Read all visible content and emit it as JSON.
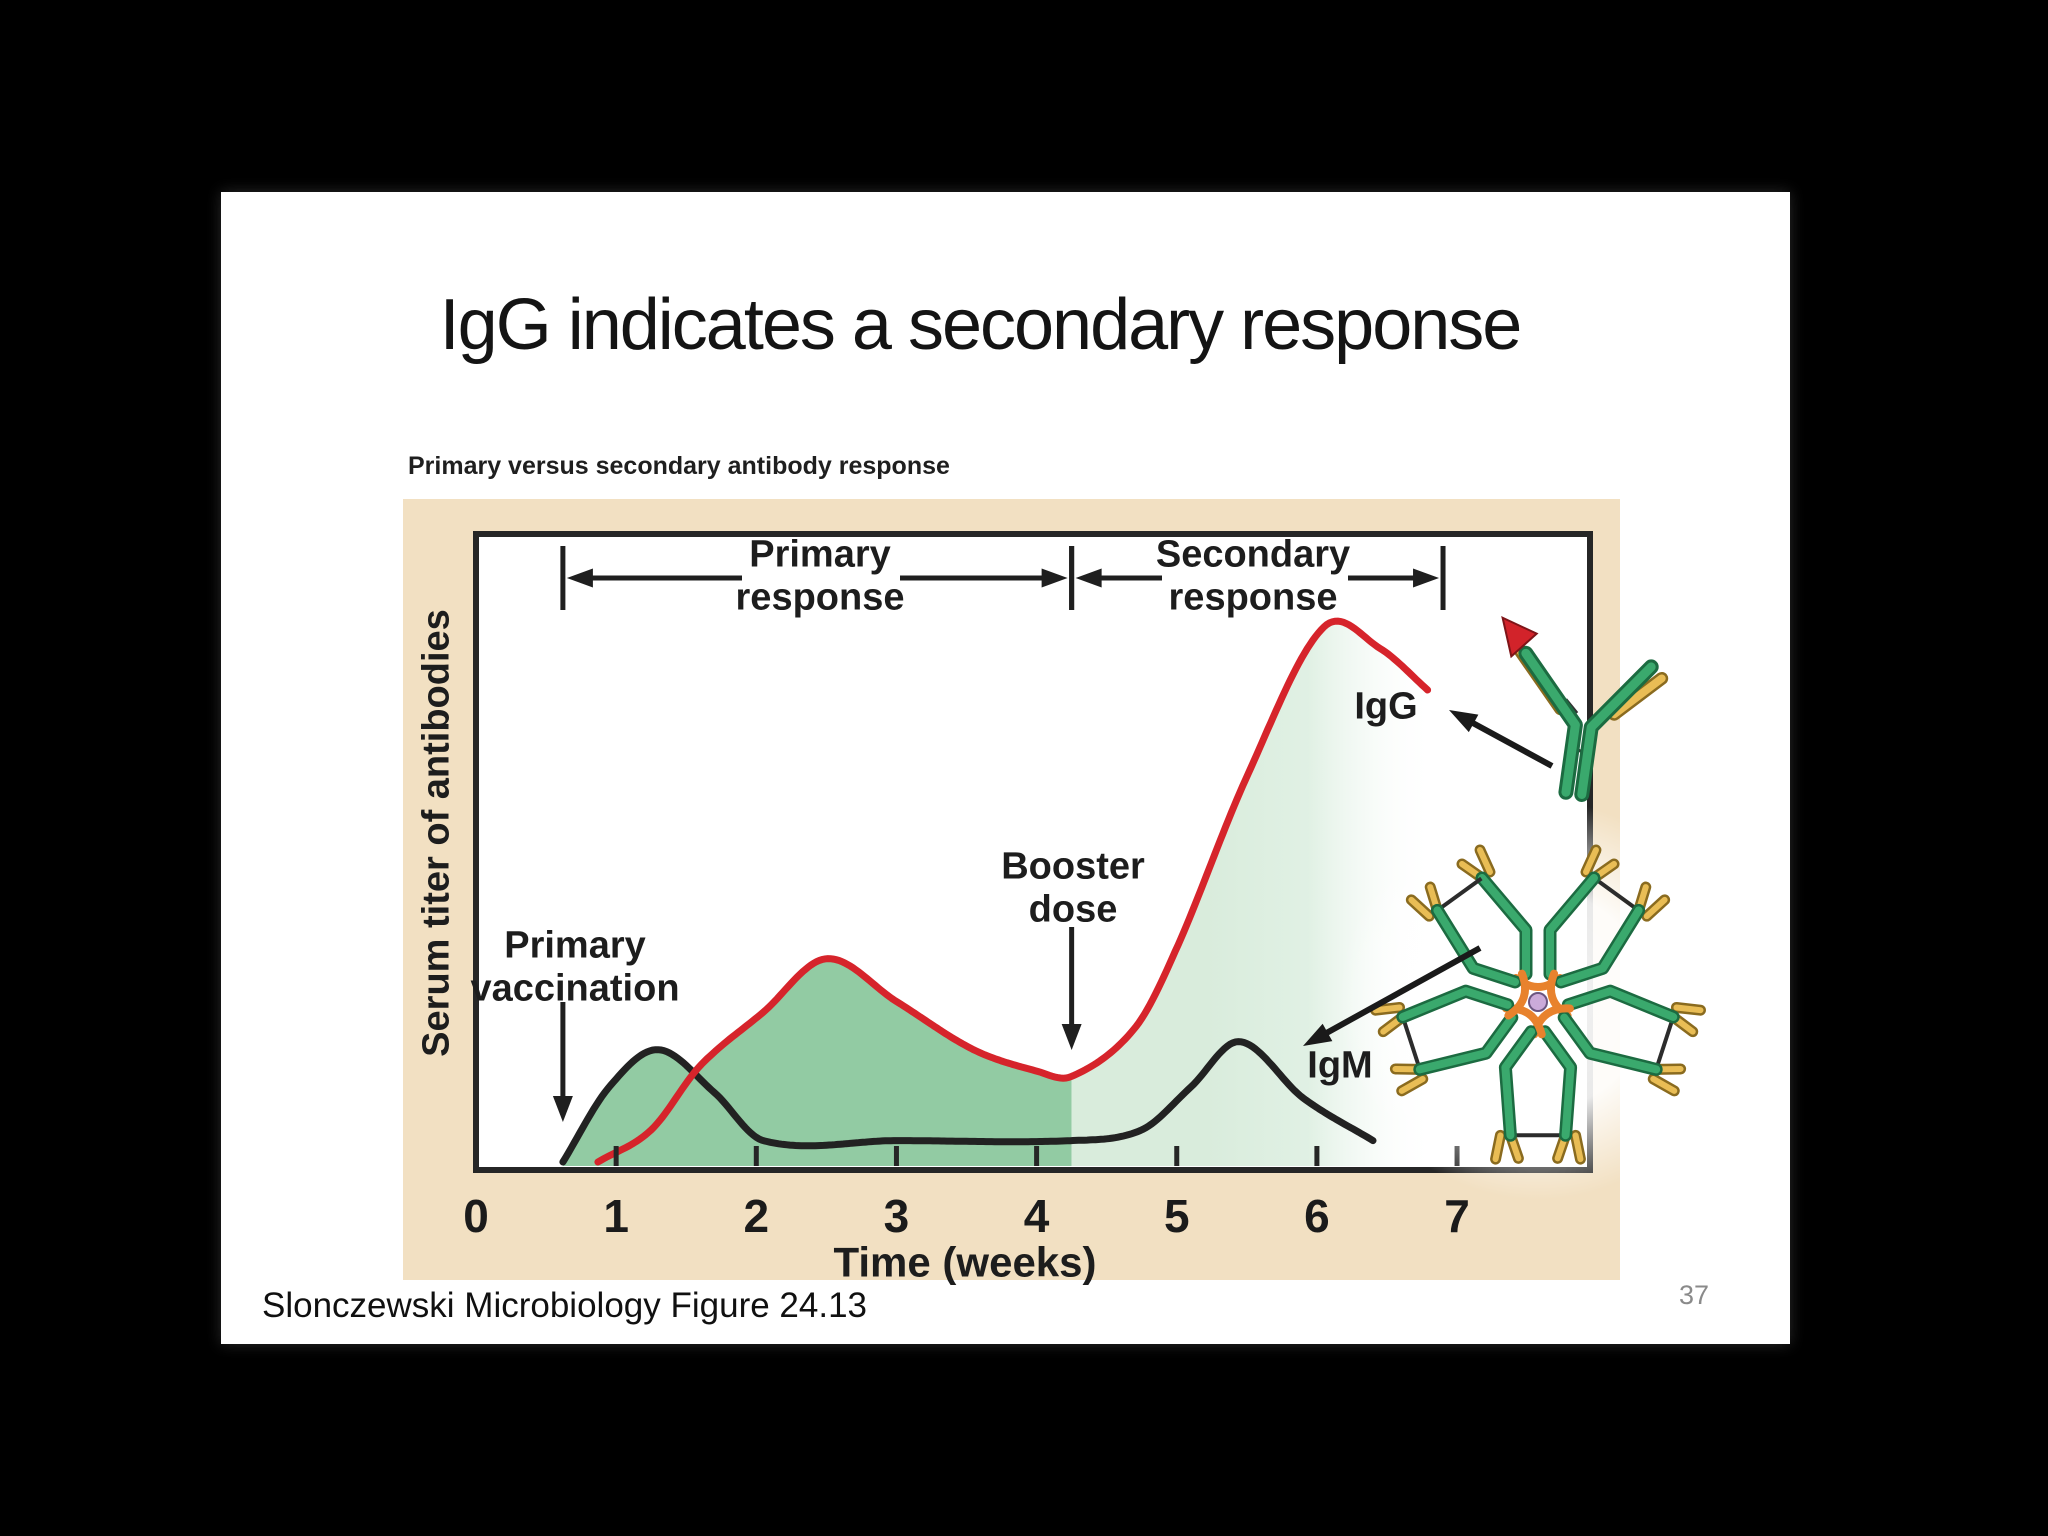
{
  "page": {
    "background": "#000000",
    "page_number": "37"
  },
  "slide": {
    "title": "IgG indicates a secondary response",
    "caption": "Slonczewski Microbiology Figure 24.13"
  },
  "figure": {
    "heading": "Primary versus secondary antibody response",
    "labels": {
      "primary_response": "Primary response",
      "secondary_response": "Secondary response",
      "primary_vaccination": "Primary vaccination",
      "booster_dose": "Booster dose",
      "igg": "IgG",
      "igm": "IgM"
    },
    "colors": {
      "tan_panel": "#f2e0c2",
      "frame_border": "#262626",
      "annotation_ink": "#1f1f1f",
      "antibody_green": "#3aa96d",
      "antibody_green_dark": "#1c6b41",
      "light_chain_yellow": "#e9bd55",
      "light_chain_yellow_dark": "#8a6b1f",
      "joint_orange": "#e8822d",
      "antigen_red": "#d2232a",
      "jchain_black": "#2c2c2c",
      "center_lavender": "#cbaad9",
      "page_number_gray": "#8a8a8a"
    }
  },
  "chart_data": {
    "type": "line",
    "title": "Primary versus secondary antibody response",
    "xlabel": "Time (weeks)",
    "ylabel": "Serum titer of antibodies",
    "x_ticks": [
      0,
      1,
      2,
      3,
      4,
      5,
      6,
      7
    ],
    "xlim": [
      0,
      7.95
    ],
    "ylim": [
      0,
      110
    ],
    "grid": false,
    "legend_position": "none",
    "y_axis_numeric_labels": false,
    "series": [
      {
        "name": "IgG",
        "color": "#d6242b",
        "points": [
          [
            0.87,
            0
          ],
          [
            1.25,
            6
          ],
          [
            1.6,
            18
          ],
          [
            2.05,
            28
          ],
          [
            2.5,
            38
          ],
          [
            3.0,
            30
          ],
          [
            3.55,
            21
          ],
          [
            4.0,
            17
          ],
          [
            4.25,
            16
          ],
          [
            4.7,
            25
          ],
          [
            5.0,
            40
          ],
          [
            5.5,
            72
          ],
          [
            6.05,
            100
          ],
          [
            6.45,
            96
          ],
          [
            6.8,
            88
          ]
        ]
      },
      {
        "name": "IgM",
        "color": "#222222",
        "points": [
          [
            0.62,
            0
          ],
          [
            0.95,
            14
          ],
          [
            1.3,
            21
          ],
          [
            1.7,
            13
          ],
          [
            2.05,
            4
          ],
          [
            3.0,
            4
          ],
          [
            4.25,
            4
          ],
          [
            4.75,
            6
          ],
          [
            5.1,
            14
          ],
          [
            5.45,
            22.5
          ],
          [
            5.9,
            12
          ],
          [
            6.4,
            4
          ]
        ]
      }
    ],
    "fills": {
      "primary": "#92cba3",
      "secondary": "#d9ecdc"
    },
    "annotations": {
      "primary_vaccination_week": 0.62,
      "booster_dose_week": 4.25,
      "primary_response_span": [
        0.62,
        4.25
      ],
      "secondary_response_span": [
        4.25,
        6.9
      ]
    }
  }
}
